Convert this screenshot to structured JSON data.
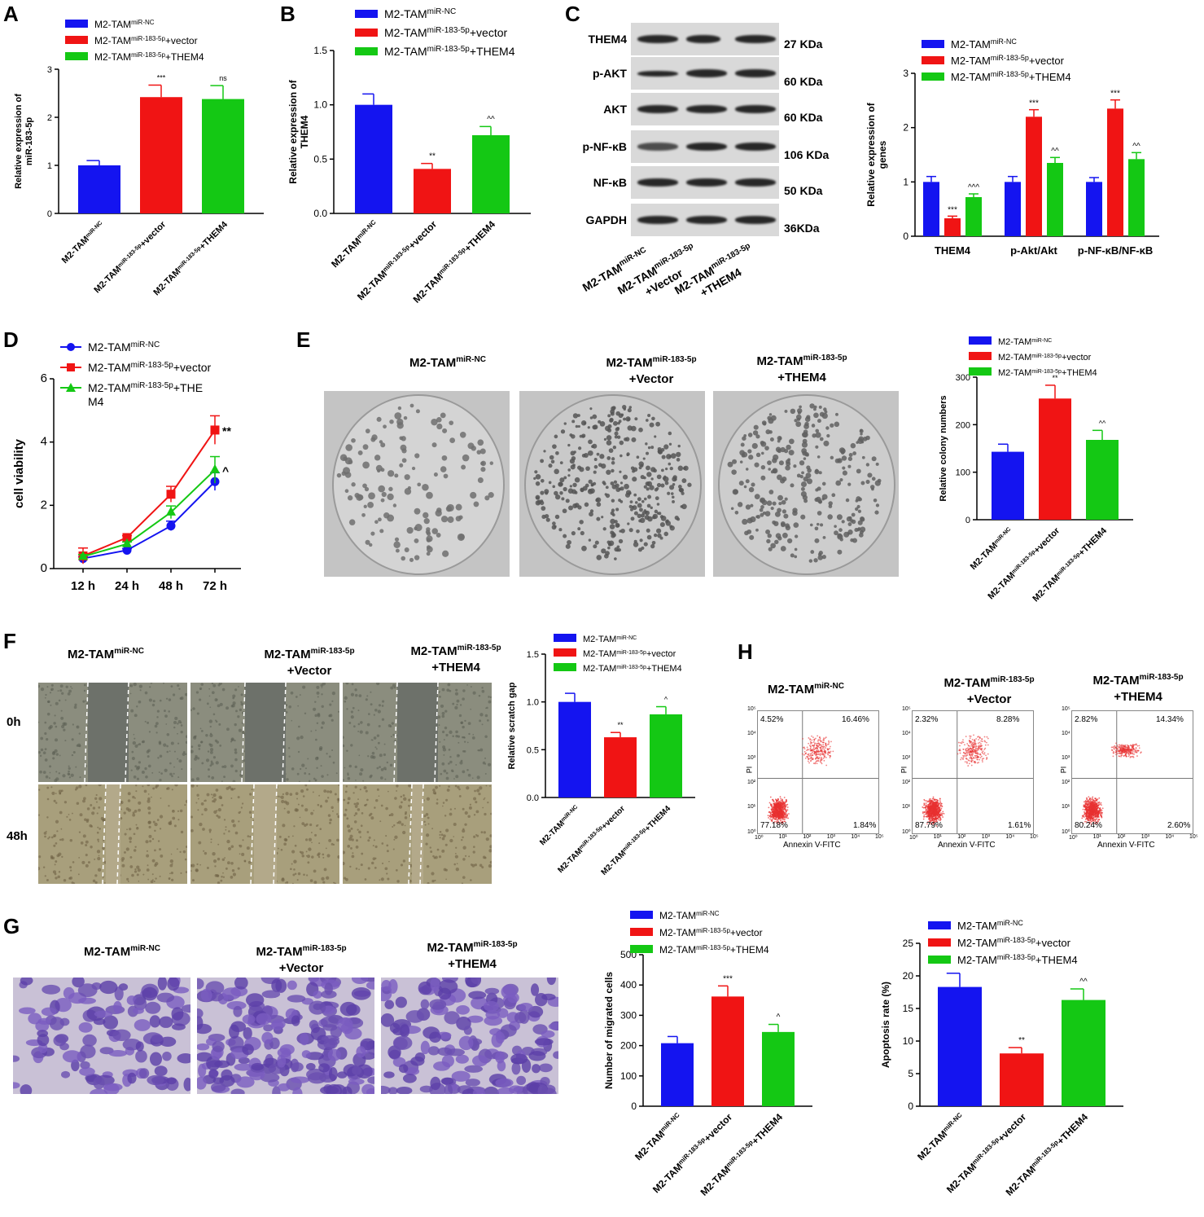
{
  "panel_labels": {
    "A": "A",
    "B": "B",
    "C": "C",
    "D": "D",
    "E": "E",
    "F": "F",
    "G": "G",
    "H": "H"
  },
  "colors": {
    "nc": "#1414f0",
    "vector": "#f01414",
    "them4": "#14c814"
  },
  "group_base": "M2-TAM",
  "group_sup": {
    "nc": "miR-NC",
    "mir": "miR-183-5p"
  },
  "group_suffix": {
    "vector": "+vector",
    "Vector": "+Vector",
    "them4": "+THEM4",
    "them4_legend_split": [
      "+THE",
      "M4"
    ]
  },
  "blot": {
    "rows": [
      {
        "name": "THEM4",
        "kda": "27 KDa"
      },
      {
        "name": "p-AKT",
        "kda": "60 KDa"
      },
      {
        "name": "AKT",
        "kda": "60 KDa"
      },
      {
        "name": "p-NF-κB",
        "kda": "106 KDa"
      },
      {
        "name": "NF-κB",
        "kda": "50 KDa"
      },
      {
        "name": "GAPDH",
        "kda": "36KDa"
      }
    ],
    "lanes": [
      {
        "line1": "M2-TAM",
        "sup": "miR-NC",
        "line2": ""
      },
      {
        "line1": "M2-TAM",
        "sup": "miR-183-5p",
        "line2": "+Vector"
      },
      {
        "line1": "M2-TAM",
        "sup": "miR-183-5p",
        "line2": "+THEM4"
      }
    ]
  },
  "col_titles": {
    "nc": {
      "base": "M2-TAM",
      "sup": "miR-NC",
      "line2": ""
    },
    "vector": {
      "base": "M2-TAM",
      "sup": "miR-183-5p",
      "line2": "+Vector"
    },
    "them4": {
      "base": "M2-TAM",
      "sup": "miR-183-5p",
      "line2": "+THEM4"
    }
  },
  "scratch_rows": {
    "t0": "0h",
    "t48": "48h"
  },
  "flow": {
    "xlabel": "Annexin V-FITC",
    "ylabel": "PI",
    "ticks": [
      "10⁰",
      "10¹",
      "10²",
      "10³",
      "10⁴",
      "10⁵"
    ],
    "plots": [
      {
        "ul": "4.52%",
        "ur": "16.46%",
        "ll": "77.18%",
        "lr": "1.84%"
      },
      {
        "ul": "2.32%",
        "ur": "8.28%",
        "ll": "87.79%",
        "lr": "1.61%"
      },
      {
        "ul": "2.82%",
        "ur": "14.34%",
        "ll": "80.24%",
        "lr": "2.60%"
      }
    ]
  },
  "chart_data": [
    {
      "id": "A",
      "type": "bar",
      "ylabel": "Relative expression of miR-183-5p",
      "ylim": [
        0,
        3
      ],
      "yticks": [
        0,
        1,
        2,
        3
      ],
      "values": [
        1.0,
        2.42,
        2.38
      ],
      "errors": [
        0.1,
        0.25,
        0.28
      ],
      "sig": [
        "",
        "***",
        "ns"
      ],
      "legend": [
        "+vector",
        "+THEM4"
      ]
    },
    {
      "id": "B",
      "type": "bar",
      "ylabel": "Relative expression of THEM4",
      "ylim": [
        0,
        1.5
      ],
      "yticks": [
        "0.0",
        "0.5",
        "1.0",
        "1.5"
      ],
      "values": [
        1.0,
        0.41,
        0.72
      ],
      "errors": [
        0.1,
        0.05,
        0.08
      ],
      "sig": [
        "",
        "**",
        "^^"
      ],
      "legend": [
        "+vector",
        "+THEM4"
      ]
    },
    {
      "id": "C",
      "type": "bar",
      "ylabel": "Relative expression of genes",
      "ylim": [
        0,
        3
      ],
      "yticks": [
        0,
        1,
        2,
        3
      ],
      "categories": [
        "THEM4",
        "p-Akt/Akt",
        "p-NF-κB/NF-κB"
      ],
      "series": [
        {
          "name": "M2-TAMmiR-NC",
          "values": [
            1.0,
            1.0,
            1.0
          ],
          "errors": [
            0.1,
            0.1,
            0.08
          ],
          "sig": [
            "",
            "",
            ""
          ]
        },
        {
          "name": "M2-TAMmiR-183-5p+vector",
          "values": [
            0.33,
            2.2,
            2.35
          ],
          "errors": [
            0.04,
            0.13,
            0.16
          ],
          "sig": [
            "***",
            "***",
            "***"
          ]
        },
        {
          "name": "M2-TAMmiR-183-5p+THEM4",
          "values": [
            0.72,
            1.35,
            1.42
          ],
          "errors": [
            0.06,
            0.1,
            0.12
          ],
          "sig": [
            "^^^",
            "^^",
            "^^"
          ]
        }
      ]
    },
    {
      "id": "D",
      "type": "line",
      "ylabel": "cell viability",
      "ylim": [
        0,
        6
      ],
      "yticks": [
        0,
        2,
        4,
        6
      ],
      "categories": [
        "12 h",
        "24 h",
        "48 h",
        "72 h"
      ],
      "series": [
        {
          "name": "M2-TAMmiR-NC",
          "values": [
            0.32,
            0.58,
            1.35,
            2.75
          ],
          "errors": [
            0.05,
            0.05,
            0.15,
            0.28
          ],
          "sig": ""
        },
        {
          "name": "M2-TAMmiR-183-5p+vector",
          "values": [
            0.4,
            0.98,
            2.35,
            4.38
          ],
          "errors": [
            0.25,
            0.06,
            0.25,
            0.45
          ],
          "sig": "**"
        },
        {
          "name": "M2-TAMmiR-183-5p+THEM4",
          "values": [
            0.38,
            0.78,
            1.78,
            3.12
          ],
          "errors": [
            0.06,
            0.06,
            0.2,
            0.42
          ],
          "sig": "^"
        }
      ]
    },
    {
      "id": "E",
      "type": "bar",
      "ylabel": "Relative colony numbers",
      "ylim": [
        0,
        300
      ],
      "yticks": [
        0,
        100,
        200,
        300
      ],
      "values": [
        143,
        255,
        168
      ],
      "errors": [
        16,
        28,
        20
      ],
      "sig": [
        "",
        "**",
        "^^"
      ],
      "legend": [
        "+vector",
        "+THEM4"
      ]
    },
    {
      "id": "F",
      "type": "bar",
      "ylabel": "Relative scratch gap",
      "ylim": [
        0,
        1.5
      ],
      "yticks": [
        "0.0",
        "0.5",
        "1.0",
        "1.5"
      ],
      "values": [
        1.0,
        0.63,
        0.87
      ],
      "errors": [
        0.09,
        0.05,
        0.08
      ],
      "sig": [
        "",
        "**",
        "^"
      ],
      "legend": [
        "+vector",
        "+THEM4"
      ]
    },
    {
      "id": "G",
      "type": "bar",
      "ylabel": "Number of migrated cells",
      "ylim": [
        0,
        500
      ],
      "yticks": [
        0,
        100,
        200,
        300,
        400,
        500
      ],
      "values": [
        208,
        362,
        245
      ],
      "errors": [
        22,
        35,
        25
      ],
      "sig": [
        "",
        "***",
        "^"
      ],
      "legend": [
        "+vector",
        "+THEM4"
      ]
    },
    {
      "id": "H",
      "type": "bar",
      "ylabel": "Apoptosis rate (%)",
      "ylim": [
        0,
        25
      ],
      "yticks": [
        0,
        5,
        10,
        15,
        20,
        25
      ],
      "values": [
        18.3,
        8.1,
        16.3
      ],
      "errors": [
        2.1,
        0.9,
        1.7
      ],
      "sig": [
        "",
        "**",
        "^^"
      ],
      "legend": [
        "+vector",
        "+THEM4"
      ]
    }
  ]
}
